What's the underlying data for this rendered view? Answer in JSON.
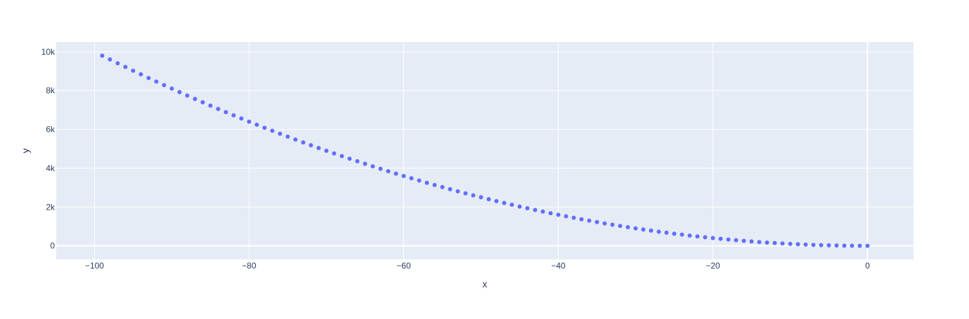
{
  "chart_data": {
    "type": "scatter",
    "title": "",
    "xlabel": "x",
    "ylabel": "y",
    "xlim": [
      -104.95,
      5.95
    ],
    "ylim": [
      -700,
      10500
    ],
    "x_ticks": [
      -100,
      -80,
      -60,
      -40,
      -20,
      0
    ],
    "x_tick_labels": [
      "−100",
      "−80",
      "−60",
      "−40",
      "−20",
      "0"
    ],
    "y_ticks": [
      0,
      2000,
      4000,
      6000,
      8000,
      10000
    ],
    "y_tick_labels": [
      "0",
      "2k",
      "4k",
      "6k",
      "8k",
      "10k"
    ],
    "grid": true,
    "legend": "none",
    "colors": {
      "plot_background": "#e5ecf6",
      "grid": "#ffffff",
      "marker": "#636efa",
      "text": "#2a3f5f"
    },
    "series": [
      {
        "x": [
          -99,
          -98,
          -97,
          -96,
          -95,
          -94,
          -93,
          -92,
          -91,
          -90,
          -89,
          -88,
          -87,
          -86,
          -85,
          -84,
          -83,
          -82,
          -81,
          -80,
          -79,
          -78,
          -77,
          -76,
          -75,
          -74,
          -73,
          -72,
          -71,
          -70,
          -69,
          -68,
          -67,
          -66,
          -65,
          -64,
          -63,
          -62,
          -61,
          -60,
          -59,
          -58,
          -57,
          -56,
          -55,
          -54,
          -53,
          -52,
          -51,
          -50,
          -49,
          -48,
          -47,
          -46,
          -45,
          -44,
          -43,
          -42,
          -41,
          -40,
          -39,
          -38,
          -37,
          -36,
          -35,
          -34,
          -33,
          -32,
          -31,
          -30,
          -29,
          -28,
          -27,
          -26,
          -25,
          -24,
          -23,
          -22,
          -21,
          -20,
          -19,
          -18,
          -17,
          -16,
          -15,
          -14,
          -13,
          -12,
          -11,
          -10,
          -9,
          -8,
          -7,
          -6,
          -5,
          -4,
          -3,
          -2,
          -1,
          0
        ],
        "y": [
          9801,
          9604,
          9409,
          9216,
          9025,
          8836,
          8649,
          8464,
          8281,
          8100,
          7921,
          7744,
          7569,
          7396,
          7225,
          7056,
          6889,
          6724,
          6561,
          6400,
          6241,
          6084,
          5929,
          5776,
          5625,
          5476,
          5329,
          5184,
          5041,
          4900,
          4761,
          4624,
          4489,
          4356,
          4225,
          4096,
          3969,
          3844,
          3721,
          3600,
          3481,
          3364,
          3249,
          3136,
          3025,
          2916,
          2809,
          2704,
          2601,
          2500,
          2401,
          2304,
          2209,
          2116,
          2025,
          1936,
          1849,
          1764,
          1681,
          1600,
          1521,
          1444,
          1369,
          1296,
          1225,
          1156,
          1089,
          1024,
          961,
          900,
          841,
          784,
          729,
          676,
          625,
          576,
          529,
          484,
          441,
          400,
          361,
          324,
          289,
          256,
          225,
          196,
          169,
          144,
          121,
          100,
          81,
          64,
          49,
          36,
          25,
          16,
          9,
          4,
          1,
          0
        ]
      }
    ]
  }
}
